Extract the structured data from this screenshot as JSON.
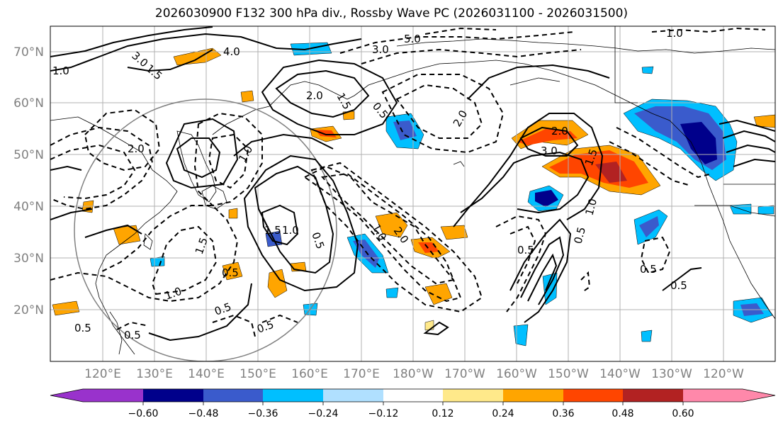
{
  "title": "2026030900 F132 300 hPa div., Rossby Wave PC (2026031100 - 2026031500)",
  "lat_labels": [
    "70°N",
    "60°N",
    "50°N",
    "40°N",
    "30°N",
    "20°N"
  ],
  "lon_labels": [
    "120°E",
    "130°E",
    "140°E",
    "150°E",
    "160°E",
    "170°E",
    "180°W",
    "170°W",
    "160°W",
    "150°W",
    "140°W",
    "130°W",
    "120°W"
  ],
  "colorbar": {
    "colors": [
      "#9932cc",
      "#00008b",
      "#3a5bcc",
      "#00bfff",
      "#b0e0ff",
      "#ffffff",
      "#ffe98a",
      "#ffa500",
      "#ff4500",
      "#b22222",
      "#ff88aa"
    ],
    "tick_labels": [
      "−0.60",
      "−0.48",
      "−0.36",
      "−0.24",
      "−0.12",
      "0.12",
      "0.24",
      "0.36",
      "0.48",
      "0.60"
    ]
  },
  "contour_labels": [
    "1.0",
    "3.0",
    "1.5",
    "4.0",
    "5.0",
    "3.0",
    "1.0",
    "2.0",
    "1.5",
    "0.5",
    "2.0",
    "3.0",
    "2.0",
    "1.5",
    "0.5",
    "1.0",
    "0.5",
    "1.0",
    "2.0",
    "1.5",
    "1.0",
    "0.5",
    "2.0",
    "0.5",
    "0.5",
    "1.0",
    "0.5",
    "0.5",
    "1.0",
    "1.5",
    "0.5",
    "0.5",
    "0.5"
  ]
}
